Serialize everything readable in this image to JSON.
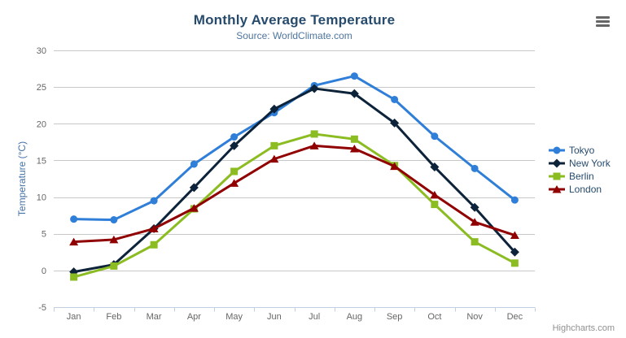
{
  "chart": {
    "title": "Monthly Average Temperature",
    "subtitle": "Source: WorldClimate.com"
  },
  "chart_data": {
    "type": "line",
    "title": "Monthly Average Temperature",
    "subtitle": "Source: WorldClimate.com",
    "categories": [
      "Jan",
      "Feb",
      "Mar",
      "Apr",
      "May",
      "Jun",
      "Jul",
      "Aug",
      "Sep",
      "Oct",
      "Nov",
      "Dec"
    ],
    "xlabel": "",
    "ylabel": "Temperature (°C)",
    "ylim": [
      -5,
      30
    ],
    "ytick_interval": 5,
    "ytick_labels": [
      "-5",
      "0",
      "5",
      "10",
      "15",
      "20",
      "25",
      "30"
    ],
    "grid": true,
    "legend_position": "right",
    "series": [
      {
        "name": "Tokyo",
        "color": "#2f7ed8",
        "marker": "circle",
        "values": [
          7.0,
          6.9,
          9.5,
          14.5,
          18.2,
          21.5,
          25.2,
          26.5,
          23.3,
          18.3,
          13.9,
          9.6
        ]
      },
      {
        "name": "New York",
        "color": "#0d233a",
        "marker": "diamond",
        "values": [
          -0.2,
          0.8,
          5.7,
          11.3,
          17.0,
          22.0,
          24.8,
          24.1,
          20.1,
          14.1,
          8.6,
          2.5
        ]
      },
      {
        "name": "Berlin",
        "color": "#8bbc21",
        "marker": "square",
        "values": [
          -0.9,
          0.6,
          3.5,
          8.4,
          13.5,
          17.0,
          18.6,
          17.9,
          14.3,
          9.0,
          3.9,
          1.0
        ]
      },
      {
        "name": "London",
        "color": "#910000",
        "marker": "triangle",
        "values": [
          3.9,
          4.2,
          5.7,
          8.5,
          11.9,
          15.2,
          17.0,
          16.6,
          14.2,
          10.3,
          6.6,
          4.8
        ]
      }
    ]
  },
  "export_menu": {
    "icon": "hamburger-icon"
  },
  "credits": {
    "label": "Highcharts.com"
  },
  "colors": {
    "title": "#274b6d",
    "subtitle": "#4d759e",
    "axis_label": "#666666",
    "axis_title": "#4572a7",
    "grid_line": "#c8c8c8",
    "axis_line": "#c0d0e0",
    "legend_text": "#274b6d",
    "credits": "#909090",
    "background": "#ffffff"
  }
}
